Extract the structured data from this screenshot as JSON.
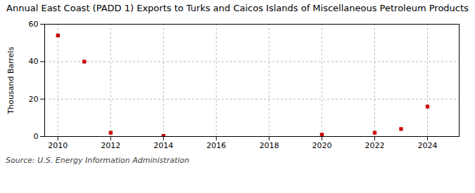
{
  "chart_data": {
    "type": "scatter",
    "title": "Annual East Coast (PADD 1) Exports to Turks and Caicos Islands of Miscellaneous Petroleum Products",
    "ylabel": "Thousand Barrels",
    "source": "Source: U.S. Energy Information Administration",
    "x": [
      2010,
      2011,
      2012,
      2014,
      2020,
      2022,
      2023,
      2024
    ],
    "values": [
      54,
      40,
      2,
      0.3,
      1,
      2,
      4,
      16
    ],
    "color": "#cc0000",
    "marker": "square",
    "xlim": [
      2009.5,
      2025.2
    ],
    "ylim": [
      0,
      60
    ],
    "xticks": [
      2010,
      2012,
      2014,
      2016,
      2018,
      2020,
      2022,
      2024
    ],
    "yticks": [
      0,
      20,
      40,
      60
    ],
    "grid": true
  }
}
